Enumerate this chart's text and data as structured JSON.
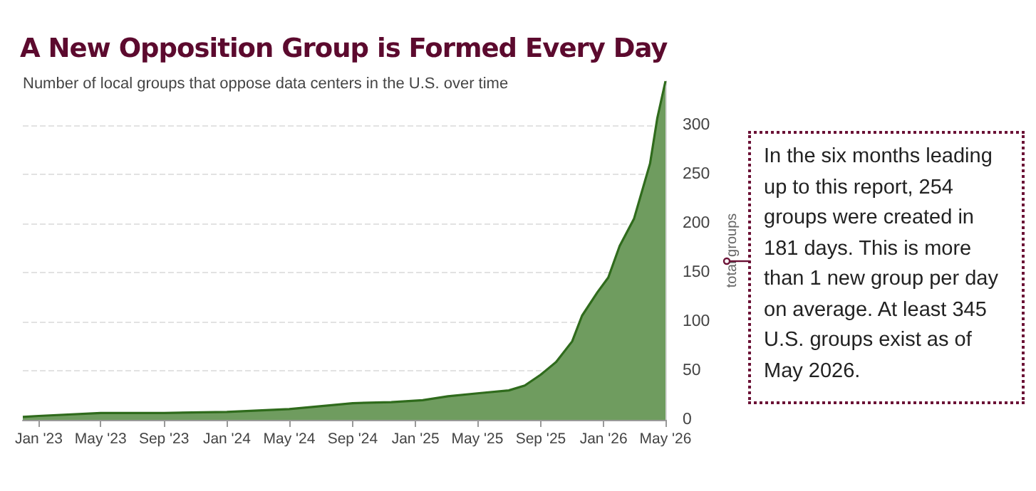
{
  "chart_data": {
    "type": "area",
    "title": "A New Opposition Group is Formed Every Day",
    "subtitle": "Number of local groups that oppose data centers in the U.S. over time",
    "ylabel": "total groups",
    "x": [
      "2022-12-01",
      "2023-01-01",
      "2023-05-01",
      "2023-09-01",
      "2024-01-01",
      "2024-05-01",
      "2024-09-01",
      "2024-11-15",
      "2025-01-15",
      "2025-03-05",
      "2025-05-01",
      "2025-07-01",
      "2025-08-01",
      "2025-09-01",
      "2025-10-01",
      "2025-11-01",
      "2025-11-20",
      "2025-12-20",
      "2026-01-10",
      "2026-02-01",
      "2026-03-01",
      "2026-04-01",
      "2026-04-15",
      "2026-05-01"
    ],
    "series": [
      {
        "color": "#6f9c5f",
        "values": [
          3,
          4,
          7,
          7,
          8,
          11,
          17,
          18,
          20,
          24,
          27,
          30,
          35,
          46,
          59,
          80,
          106,
          130,
          145,
          177,
          205,
          261,
          307,
          345
        ]
      }
    ],
    "xlim": [
      "2022-12-01",
      "2026-05-01"
    ],
    "xticks": [
      {
        "value": "2023-01-01",
        "label": "Jan '23"
      },
      {
        "value": "2023-05-01",
        "label": "May '23"
      },
      {
        "value": "2023-09-01",
        "label": "Sep '23"
      },
      {
        "value": "2024-01-01",
        "label": "Jan '24"
      },
      {
        "value": "2024-05-01",
        "label": "May '24"
      },
      {
        "value": "2024-09-01",
        "label": "Sep '24"
      },
      {
        "value": "2025-01-01",
        "label": "Jan '25"
      },
      {
        "value": "2025-05-01",
        "label": "May '25"
      },
      {
        "value": "2025-09-01",
        "label": "Sep '25"
      },
      {
        "value": "2026-01-01",
        "label": "Jan '26"
      },
      {
        "value": "2026-05-01",
        "label": "May '26"
      }
    ],
    "ylim": [
      0,
      345
    ],
    "yticks": [
      0,
      50,
      100,
      150,
      200,
      250,
      300
    ],
    "grid": "y",
    "annotations": [
      "In the six months leading up to this report, 254 groups were created in 181 days. This is more than 1 new group per day on average. At least 345 U.S. groups exist as of May 2026."
    ]
  }
}
